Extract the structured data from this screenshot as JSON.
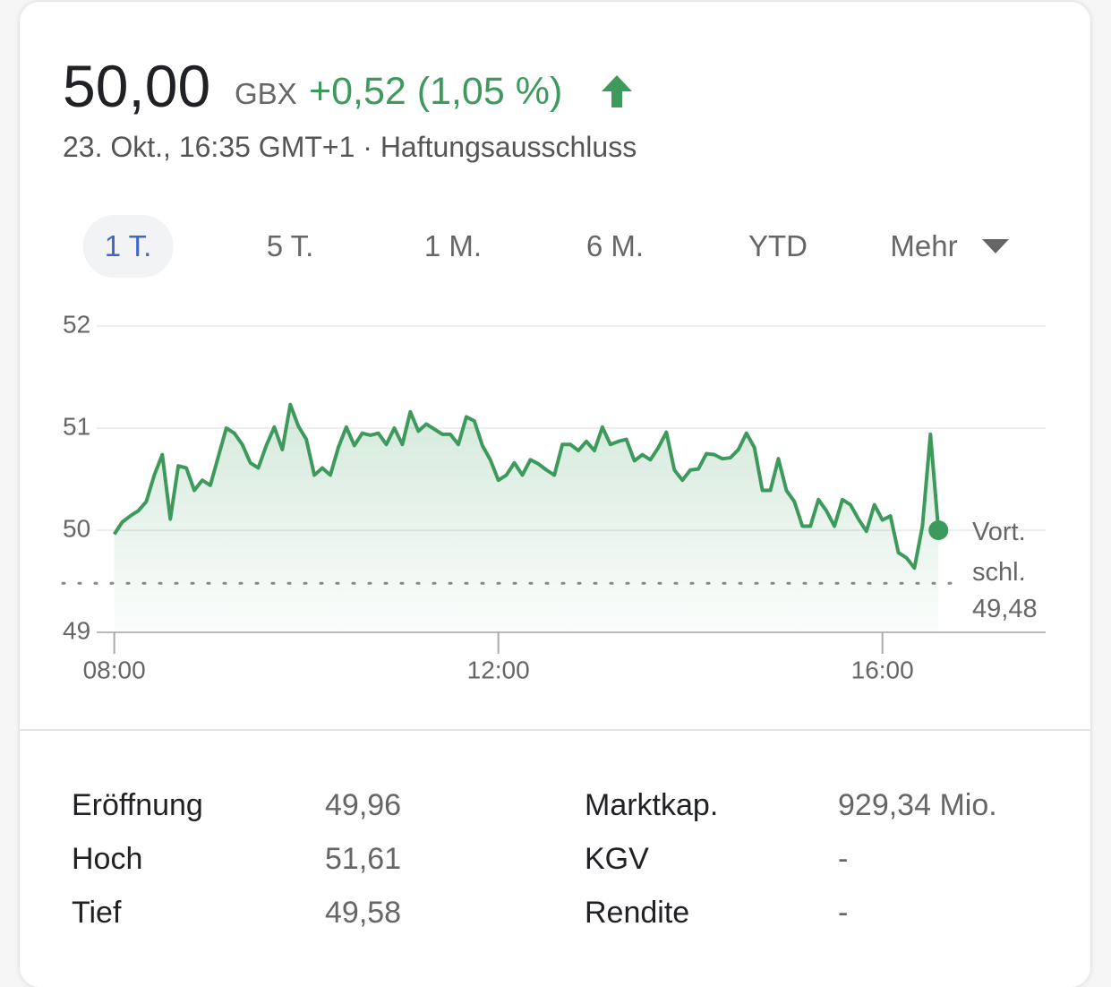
{
  "header": {
    "price": "50,00",
    "currency": "GBX",
    "change": "+0,52 (1,05 %)",
    "timestamp": "23. Okt., 16:35 GMT+1",
    "separator": "·",
    "disclaimer": "Haftungsausschluss"
  },
  "tabs": {
    "items": [
      "1 T.",
      "5 T.",
      "1 M.",
      "6 M.",
      "YTD",
      "Mehr"
    ],
    "selected": 0
  },
  "chart_data": {
    "type": "line",
    "x": [
      480,
      485,
      490,
      495,
      500,
      505,
      510,
      515,
      520,
      525,
      530,
      535,
      540,
      545,
      550,
      555,
      560,
      565,
      570,
      575,
      580,
      585,
      590,
      595,
      600,
      605,
      610,
      615,
      620,
      625,
      630,
      635,
      640,
      645,
      650,
      655,
      660,
      665,
      670,
      675,
      680,
      685,
      690,
      695,
      700,
      705,
      710,
      715,
      720,
      725,
      730,
      735,
      740,
      745,
      750,
      755,
      760,
      765,
      770,
      775,
      780,
      785,
      790,
      795,
      800,
      805,
      810,
      815,
      820,
      825,
      830,
      835,
      840,
      845,
      850,
      855,
      860,
      865,
      870,
      875,
      880,
      885,
      890,
      895,
      900,
      905,
      910,
      915,
      920,
      925,
      930,
      935,
      940,
      945,
      950,
      955,
      960,
      965,
      970,
      975,
      980,
      985,
      990,
      995
    ],
    "series": [
      {
        "name": "Kurs",
        "color": "#3d9a5c",
        "values": [
          49.96,
          50.08,
          50.14,
          50.19,
          50.28,
          50.54,
          50.74,
          50.11,
          50.63,
          50.61,
          50.39,
          50.49,
          50.44,
          50.72,
          51.0,
          50.95,
          50.84,
          50.66,
          50.61,
          50.83,
          51.01,
          50.79,
          51.23,
          51.02,
          50.89,
          50.54,
          50.61,
          50.54,
          50.81,
          51.01,
          50.83,
          50.95,
          50.93,
          50.95,
          50.84,
          51.0,
          50.84,
          51.16,
          50.97,
          51.04,
          50.99,
          50.94,
          50.94,
          50.84,
          51.11,
          51.07,
          50.83,
          50.69,
          50.49,
          50.54,
          50.66,
          50.54,
          50.69,
          50.65,
          50.59,
          50.54,
          50.84,
          50.84,
          50.78,
          50.87,
          50.78,
          51.01,
          50.84,
          50.87,
          50.89,
          50.68,
          50.74,
          50.69,
          50.81,
          50.96,
          50.59,
          50.49,
          50.59,
          50.6,
          50.75,
          50.74,
          50.7,
          50.71,
          50.79,
          50.95,
          50.81,
          50.39,
          50.39,
          50.7,
          50.39,
          50.28,
          50.04,
          50.04,
          50.3,
          50.19,
          50.04,
          50.3,
          50.25,
          50.11,
          49.99,
          50.25,
          50.1,
          50.14,
          49.78,
          49.73,
          49.63,
          50.04,
          50.94,
          50.0
        ]
      }
    ],
    "xlim": [
      469,
      1062
    ],
    "xticks": [
      {
        "value": 480,
        "label": "08:00"
      },
      {
        "value": 720,
        "label": "12:00"
      },
      {
        "value": 960,
        "label": "16:00"
      }
    ],
    "ylim": [
      49,
      52
    ],
    "yticks": [
      49,
      50,
      51,
      52
    ],
    "grid": true,
    "previous_close": {
      "value": 49.48,
      "label": "Vort. schl.",
      "value_label": "49,48"
    }
  },
  "stats": {
    "rows": [
      [
        "Eröffnung",
        "49,96",
        "Marktkap.",
        "929,34 Mio."
      ],
      [
        "Hoch",
        "51,61",
        "KGV",
        "-"
      ],
      [
        "Tief",
        "49,58",
        "Rendite",
        "-"
      ]
    ]
  }
}
